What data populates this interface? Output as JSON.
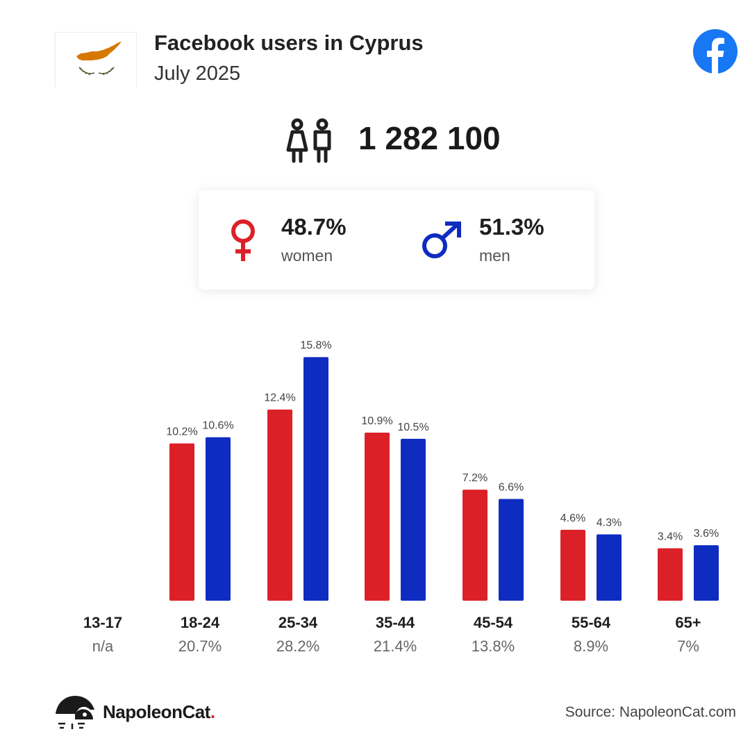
{
  "header": {
    "title": "Facebook users in Cyprus",
    "subtitle": "July 2025"
  },
  "icons": {
    "flag": "cyprus-flag-icon",
    "facebook": "facebook-logo-icon",
    "users": "users-icon",
    "female": "female-symbol-icon",
    "male": "male-symbol-icon",
    "brand": "napoleoncat-logo-icon"
  },
  "total_users": "1 282 100",
  "gender": {
    "women": {
      "pct": "48.7%",
      "label": "women"
    },
    "men": {
      "pct": "51.3%",
      "label": "men"
    }
  },
  "colors": {
    "women": "#dc2028",
    "men": "#0f2cc0",
    "facebook": "#1877f2",
    "flag_map": "#d57800",
    "flag_olive": "#4e5b31"
  },
  "chart_data": {
    "type": "bar",
    "categories": [
      "13-17",
      "18-24",
      "25-34",
      "35-44",
      "45-54",
      "55-64",
      "65+"
    ],
    "category_shares": [
      "n/a",
      "20.7%",
      "28.2%",
      "21.4%",
      "13.8%",
      "8.9%",
      "7%"
    ],
    "series": [
      {
        "values": [
          null,
          10.2,
          12.4,
          10.9,
          7.2,
          4.6,
          3.4
        ],
        "labels": [
          "",
          "10.2%",
          "12.4%",
          "10.9%",
          "7.2%",
          "4.6%",
          "3.4%"
        ]
      },
      {
        "values": [
          null,
          10.6,
          15.8,
          10.5,
          6.6,
          4.3,
          3.6
        ],
        "labels": [
          "",
          "10.6%",
          "15.8%",
          "10.5%",
          "6.6%",
          "4.3%",
          "3.6%"
        ]
      }
    ],
    "ylim": [
      0,
      16
    ]
  },
  "footer": {
    "brand_name": "NapoleonCat",
    "brand_dot": ".",
    "source": "Source: NapoleonCat.com"
  }
}
